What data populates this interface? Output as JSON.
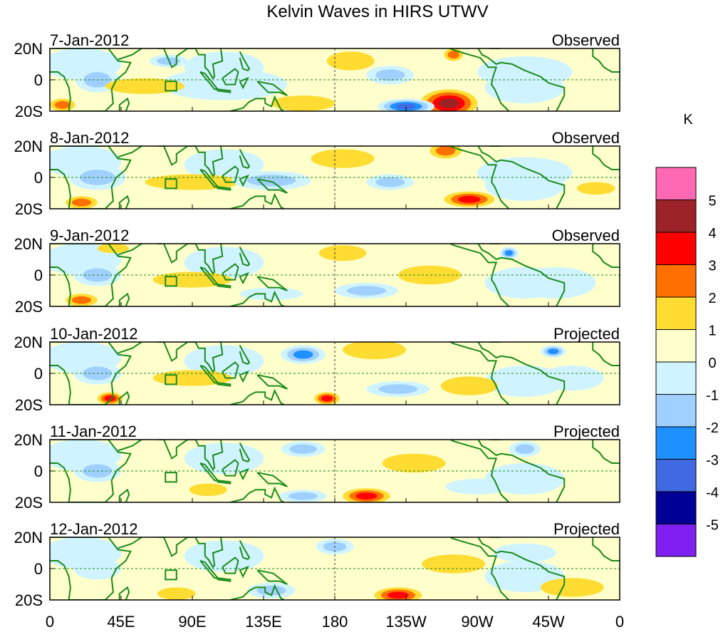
{
  "chart_data": {
    "type": "heatmap",
    "title": "Kelvin Waves in HIRS UTWV",
    "units_label": "K",
    "x_ticks": [
      "0",
      "45E",
      "90E",
      "135E",
      "180",
      "135W",
      "90W",
      "45W",
      "0"
    ],
    "x_tick_lons": [
      0,
      45,
      90,
      135,
      180,
      225,
      270,
      315,
      360
    ],
    "y_ticks": [
      "20N",
      "0",
      "20S"
    ],
    "y_tick_lats": [
      20,
      0,
      -20
    ],
    "colorbar": {
      "labels": [
        "5",
        "4",
        "3",
        "2",
        "1",
        "0",
        "-1",
        "-2",
        "-3",
        "-4",
        "-5"
      ],
      "colors": [
        "#ff69b4",
        "#9b2226",
        "#ff0000",
        "#ff7000",
        "#ffdc32",
        "#ffffcc",
        "#d0f4ff",
        "#a0d0ff",
        "#1e90ff",
        "#4169e1",
        "#000096",
        "#8020f0"
      ]
    },
    "panels": [
      {
        "date": "7-Jan-2012",
        "kind": "Observed",
        "features": [
          {
            "lon": 30,
            "lat": 0,
            "rx": 14,
            "ry": 8,
            "v": -2
          },
          {
            "lon": 110,
            "lat": -3,
            "rx": 40,
            "ry": 10,
            "v": -1
          },
          {
            "lon": 60,
            "lat": -4,
            "rx": 25,
            "ry": 5,
            "v": 1
          },
          {
            "lon": 190,
            "lat": 12,
            "rx": 15,
            "ry": 6,
            "v": 1
          },
          {
            "lon": 252,
            "lat": -15,
            "rx": 18,
            "ry": 9,
            "v": 4
          },
          {
            "lon": 225,
            "lat": -17,
            "rx": 18,
            "ry": 5,
            "v": -4
          },
          {
            "lon": 255,
            "lat": 16,
            "rx": 6,
            "ry": 4,
            "v": 2
          },
          {
            "lon": 75,
            "lat": 12,
            "rx": 12,
            "ry": 4,
            "v": -2
          },
          {
            "lon": 300,
            "lat": 5,
            "rx": 30,
            "ry": 10,
            "v": -1
          },
          {
            "lon": 8,
            "lat": -16,
            "rx": 8,
            "ry": 4,
            "v": 2
          },
          {
            "lon": 160,
            "lat": -15,
            "rx": 20,
            "ry": 5,
            "v": 1
          },
          {
            "lon": 215,
            "lat": 3,
            "rx": 15,
            "ry": 6,
            "v": -2
          }
        ]
      },
      {
        "date": "8-Jan-2012",
        "kind": "Observed",
        "features": [
          {
            "lon": 30,
            "lat": 0,
            "rx": 18,
            "ry": 8,
            "v": -2
          },
          {
            "lon": 20,
            "lat": -16,
            "rx": 10,
            "ry": 4,
            "v": 2
          },
          {
            "lon": 90,
            "lat": -3,
            "rx": 30,
            "ry": 5,
            "v": 1
          },
          {
            "lon": 185,
            "lat": 12,
            "rx": 20,
            "ry": 6,
            "v": 1
          },
          {
            "lon": 140,
            "lat": -2,
            "rx": 25,
            "ry": 6,
            "v": -2
          },
          {
            "lon": 265,
            "lat": -14,
            "rx": 16,
            "ry": 5,
            "v": 3
          },
          {
            "lon": 250,
            "lat": 17,
            "rx": 10,
            "ry": 5,
            "v": 2
          },
          {
            "lon": 300,
            "lat": 3,
            "rx": 30,
            "ry": 10,
            "v": -1
          },
          {
            "lon": 345,
            "lat": -7,
            "rx": 12,
            "ry": 4,
            "v": 1
          },
          {
            "lon": 215,
            "lat": -3,
            "rx": 15,
            "ry": 5,
            "v": -2
          }
        ]
      },
      {
        "date": "9-Jan-2012",
        "kind": "Observed",
        "features": [
          {
            "lon": 30,
            "lat": 0,
            "rx": 15,
            "ry": 7,
            "v": -2
          },
          {
            "lon": 20,
            "lat": -16,
            "rx": 10,
            "ry": 4,
            "v": 2
          },
          {
            "lon": 40,
            "lat": 17,
            "rx": 10,
            "ry": 3,
            "v": 1
          },
          {
            "lon": 90,
            "lat": -3,
            "rx": 25,
            "ry": 5,
            "v": 1
          },
          {
            "lon": 185,
            "lat": 14,
            "rx": 15,
            "ry": 5,
            "v": 1
          },
          {
            "lon": 200,
            "lat": -10,
            "rx": 20,
            "ry": 5,
            "v": -2
          },
          {
            "lon": 290,
            "lat": 14,
            "rx": 6,
            "ry": 4,
            "v": -3
          },
          {
            "lon": 240,
            "lat": 0,
            "rx": 20,
            "ry": 6,
            "v": 1
          },
          {
            "lon": 140,
            "lat": -12,
            "rx": 20,
            "ry": 4,
            "v": -1
          },
          {
            "lon": 320,
            "lat": -5,
            "rx": 25,
            "ry": 10,
            "v": -1
          }
        ]
      },
      {
        "date": "10-Jan-2012",
        "kind": "Projected",
        "features": [
          {
            "lon": 30,
            "lat": 0,
            "rx": 15,
            "ry": 7,
            "v": -2
          },
          {
            "lon": 38,
            "lat": -16,
            "rx": 8,
            "ry": 4,
            "v": 3
          },
          {
            "lon": 175,
            "lat": -16,
            "rx": 8,
            "ry": 4,
            "v": 3
          },
          {
            "lon": 160,
            "lat": 12,
            "rx": 14,
            "ry": 6,
            "v": -3
          },
          {
            "lon": 205,
            "lat": 15,
            "rx": 20,
            "ry": 6,
            "v": 1
          },
          {
            "lon": 318,
            "lat": 14,
            "rx": 8,
            "ry": 4,
            "v": -3
          },
          {
            "lon": 90,
            "lat": -3,
            "rx": 25,
            "ry": 5,
            "v": 1
          },
          {
            "lon": 220,
            "lat": -10,
            "rx": 20,
            "ry": 5,
            "v": -2
          },
          {
            "lon": 265,
            "lat": -8,
            "rx": 18,
            "ry": 6,
            "v": 1
          },
          {
            "lon": 330,
            "lat": -3,
            "rx": 20,
            "ry": 8,
            "v": -1
          }
        ]
      },
      {
        "date": "11-Jan-2012",
        "kind": "Projected",
        "features": [
          {
            "lon": 30,
            "lat": 0,
            "rx": 15,
            "ry": 7,
            "v": -2
          },
          {
            "lon": 100,
            "lat": -12,
            "rx": 12,
            "ry": 4,
            "v": 1
          },
          {
            "lon": 160,
            "lat": 14,
            "rx": 14,
            "ry": 5,
            "v": -2
          },
          {
            "lon": 200,
            "lat": -16,
            "rx": 15,
            "ry": 5,
            "v": 3
          },
          {
            "lon": 300,
            "lat": 14,
            "rx": 10,
            "ry": 5,
            "v": -2
          },
          {
            "lon": 160,
            "lat": -16,
            "rx": 15,
            "ry": 4,
            "v": -2
          },
          {
            "lon": 230,
            "lat": 5,
            "rx": 20,
            "ry": 6,
            "v": 1
          },
          {
            "lon": 270,
            "lat": -10,
            "rx": 20,
            "ry": 5,
            "v": -1
          }
        ]
      },
      {
        "date": "12-Jan-2012",
        "kind": "Projected",
        "features": [
          {
            "lon": 30,
            "lat": 0,
            "rx": 15,
            "ry": 7,
            "v": -1
          },
          {
            "lon": 80,
            "lat": -16,
            "rx": 12,
            "ry": 4,
            "v": 1
          },
          {
            "lon": 180,
            "lat": 14,
            "rx": 12,
            "ry": 5,
            "v": -2
          },
          {
            "lon": 220,
            "lat": -17,
            "rx": 15,
            "ry": 5,
            "v": 3
          },
          {
            "lon": 140,
            "lat": -14,
            "rx": 15,
            "ry": 5,
            "v": -2
          },
          {
            "lon": 300,
            "lat": 10,
            "rx": 20,
            "ry": 6,
            "v": -1
          },
          {
            "lon": 255,
            "lat": 3,
            "rx": 20,
            "ry": 6,
            "v": 1
          },
          {
            "lon": 330,
            "lat": -12,
            "rx": 20,
            "ry": 6,
            "v": 1
          }
        ]
      }
    ]
  }
}
